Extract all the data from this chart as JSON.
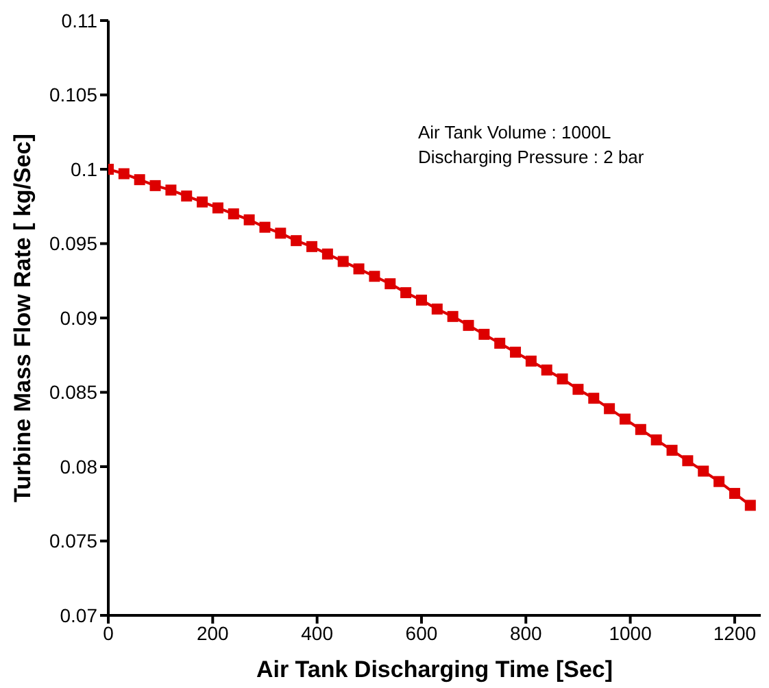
{
  "chart_data": {
    "type": "line",
    "xlabel": "Air Tank Discharging Time [Sec]",
    "ylabel": "Turbine Mass Flow Rate [ kg/Sec]",
    "annotations": [
      "Air Tank Volume : 1000L",
      "Discharging Pressure : 2 bar"
    ],
    "x": [
      0,
      30,
      60,
      90,
      120,
      150,
      180,
      210,
      240,
      270,
      300,
      330,
      360,
      390,
      420,
      450,
      480,
      510,
      540,
      570,
      600,
      630,
      660,
      690,
      720,
      750,
      780,
      810,
      840,
      870,
      900,
      930,
      960,
      990,
      1020,
      1050,
      1080,
      1110,
      1140,
      1170,
      1200,
      1230
    ],
    "series": [
      {
        "color": "#dd0000",
        "values": [
          0.1,
          0.0997,
          0.0993,
          0.0989,
          0.0986,
          0.0982,
          0.0978,
          0.0974,
          0.097,
          0.0966,
          0.0961,
          0.0957,
          0.0952,
          0.0948,
          0.0943,
          0.0938,
          0.0933,
          0.0928,
          0.0923,
          0.0917,
          0.0912,
          0.0906,
          0.0901,
          0.0895,
          0.0889,
          0.0883,
          0.0877,
          0.0871,
          0.0865,
          0.0859,
          0.0852,
          0.0846,
          0.0839,
          0.0832,
          0.0825,
          0.0818,
          0.0811,
          0.0804,
          0.0797,
          0.079,
          0.0782,
          0.0774
        ]
      }
    ],
    "xlim": [
      0,
      1250
    ],
    "xticks": [
      0,
      200,
      400,
      600,
      800,
      1000,
      1200
    ],
    "ylim": [
      0.07,
      0.11
    ],
    "yticks": [
      0.07,
      0.075,
      0.08,
      0.085,
      0.09,
      0.095,
      0.1,
      0.105,
      0.11
    ],
    "grid": false,
    "legend": false,
    "marker": "square",
    "line_style": "solid"
  }
}
